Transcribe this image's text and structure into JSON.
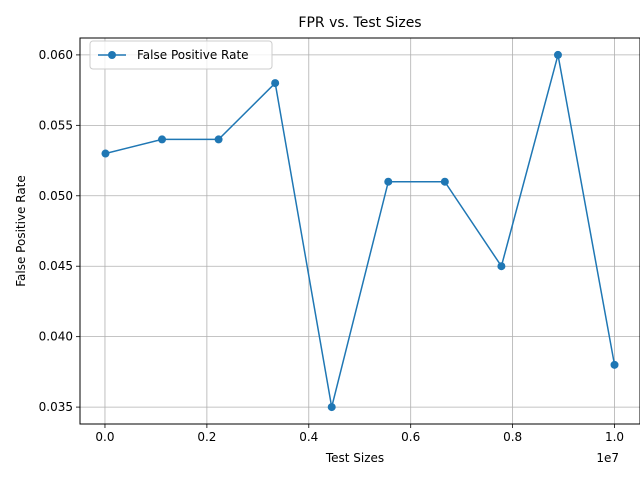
{
  "chart_data": {
    "type": "line",
    "title": "FPR vs. Test Sizes",
    "xlabel": "Test Sizes",
    "ylabel": "False Positive Rate",
    "x_offset_label": "1e7",
    "x": [
      10000,
      1120000,
      2230000,
      3340000,
      4450000,
      5560000,
      6670000,
      7780000,
      8890000,
      10000000
    ],
    "series": [
      {
        "name": "False Positive Rate",
        "color": "#1f77b4",
        "marker": "circle",
        "values": [
          0.053,
          0.054,
          0.054,
          0.058,
          0.035,
          0.051,
          0.051,
          0.045,
          0.06,
          0.038
        ]
      }
    ],
    "xlim": [
      -490000,
      10500000
    ],
    "ylim": [
      0.0338,
      0.0612
    ],
    "xticks": [
      0,
      2000000,
      4000000,
      6000000,
      8000000,
      10000000
    ],
    "xtick_labels": [
      "0.0",
      "0.2",
      "0.4",
      "0.6",
      "0.8",
      "1.0"
    ],
    "yticks": [
      0.035,
      0.04,
      0.045,
      0.05,
      0.055,
      0.06
    ],
    "ytick_labels": [
      "0.035",
      "0.040",
      "0.045",
      "0.050",
      "0.055",
      "0.060"
    ],
    "grid": true,
    "legend_position": "top-left"
  }
}
